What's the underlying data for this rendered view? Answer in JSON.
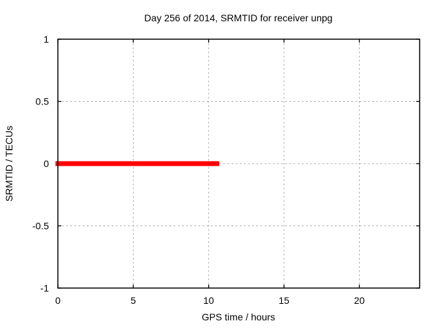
{
  "figure": {
    "background": "#ffffff"
  },
  "chart_data": {
    "type": "line",
    "title": "Day 256 of 2014, SRMTID for receiver unpg",
    "xlabel": "GPS time / hours",
    "ylabel": "SRMTID / TECUs",
    "xlim": [
      0,
      24
    ],
    "ylim": [
      -1,
      1
    ],
    "xticks": [
      0,
      5,
      10,
      15,
      20
    ],
    "yticks": [
      -1,
      -0.5,
      0,
      0.5,
      1
    ],
    "grid": true,
    "grid_style": "dashed",
    "legend": "none",
    "colors": {
      "line": "#ff0000",
      "grid": "#aaaaaa",
      "border": "#000000",
      "text": "#000000"
    },
    "series": [
      {
        "name": "SRMTID",
        "color": "#ff0000",
        "linewidth": 7,
        "x": [
          0,
          10.55
        ],
        "y": [
          0,
          0
        ]
      }
    ]
  }
}
